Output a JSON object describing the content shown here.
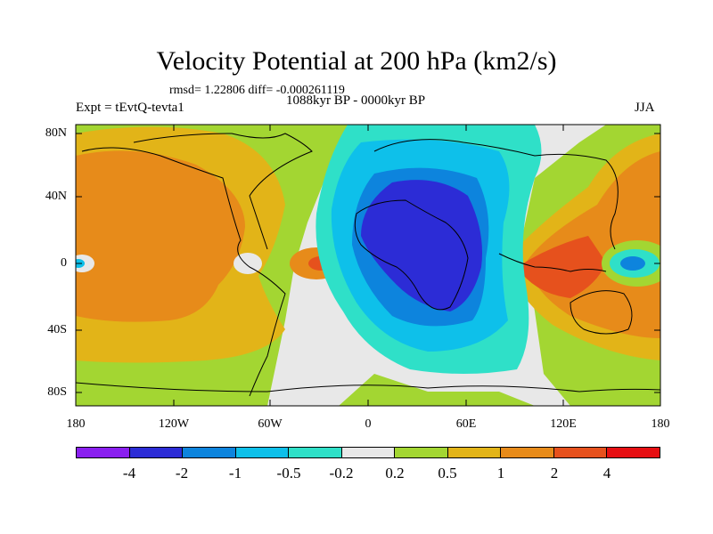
{
  "title": "Velocity Potential at 200 hPa (km2/s)",
  "stats": "rmsd= 1.22806 diff= -0.000261119",
  "period": "1088kyr BP - 0000kyr BP",
  "experiment": "Expt = tEvtQ-tevta1",
  "season": "JJA",
  "y_axis": {
    "labels": [
      "80N",
      "40N",
      "0",
      "40S",
      "80S"
    ]
  },
  "x_axis": {
    "labels": [
      "180",
      "120W",
      "60W",
      "0",
      "60E",
      "120E",
      "180"
    ]
  },
  "colorbar": {
    "colors": [
      "#8a1fef",
      "#2c2cd6",
      "#0d84dd",
      "#0ec0ea",
      "#2fe0c8",
      "#e8e8e8",
      "#a3d632",
      "#e2b418",
      "#e78b1a",
      "#e6511d",
      "#e60f12"
    ],
    "labels": [
      "-4",
      "-2",
      "-1",
      "-0.5",
      "-0.2",
      "0.2",
      "0.5",
      "1",
      "2",
      "4"
    ]
  },
  "map_colors": {
    "c_m2": "#2c2cd6",
    "c_m1": "#0d84dd",
    "c_m05": "#0ec0ea",
    "c_m02": "#2fe0c8",
    "c_0": "#e8e8e8",
    "c_02": "#a3d632",
    "c_05": "#e2b418",
    "c_1": "#e78b1a",
    "c_2": "#e6511d",
    "c_4": "#e60f12"
  }
}
